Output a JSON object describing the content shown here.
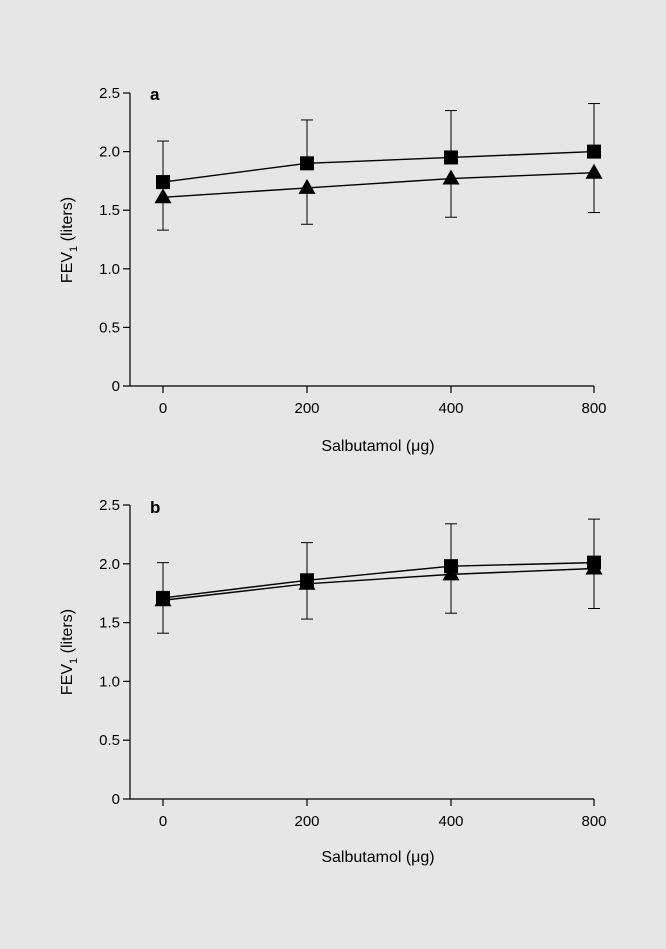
{
  "colors": {
    "background": "#e6e6e7",
    "ink": "#000000"
  },
  "chart_data": [
    {
      "type": "line",
      "panel": "a",
      "x_categories": [
        "0",
        "200",
        "400",
        "800"
      ],
      "xlabel": "Salbutamol (μg)",
      "ylabel_main": "FEV",
      "ylabel_sub": "1",
      "ylabel_tail": " (liters)",
      "ylim": [
        0,
        2.5
      ],
      "yticks": [
        "0",
        "0.5",
        "1.0",
        "1.5",
        "2.0",
        "2.5"
      ],
      "grid": false,
      "series": [
        {
          "marker": "square",
          "values": [
            1.74,
            1.9,
            1.95,
            2.0
          ],
          "error": [
            0.35,
            0.37,
            0.4,
            0.41
          ],
          "error_dir": "up"
        },
        {
          "marker": "triangle",
          "values": [
            1.61,
            1.69,
            1.77,
            1.82
          ],
          "error": [
            0.28,
            0.31,
            0.33,
            0.34
          ],
          "error_dir": "down"
        }
      ]
    },
    {
      "type": "line",
      "panel": "b",
      "x_categories": [
        "0",
        "200",
        "400",
        "800"
      ],
      "xlabel": "Salbutamol (μg)",
      "ylabel_main": "FEV",
      "ylabel_sub": "1",
      "ylabel_tail": " (liters)",
      "ylim": [
        0,
        2.5
      ],
      "yticks": [
        "0",
        "0.5",
        "1.0",
        "1.5",
        "2.0",
        "2.5"
      ],
      "grid": false,
      "series": [
        {
          "marker": "square",
          "values": [
            1.71,
            1.86,
            1.98,
            2.01
          ],
          "error": [
            0.3,
            0.32,
            0.36,
            0.37
          ],
          "error_dir": "up"
        },
        {
          "marker": "triangle",
          "values": [
            1.69,
            1.83,
            1.91,
            1.96
          ],
          "error": [
            0.28,
            0.3,
            0.33,
            0.34
          ],
          "error_dir": "down"
        }
      ]
    }
  ]
}
